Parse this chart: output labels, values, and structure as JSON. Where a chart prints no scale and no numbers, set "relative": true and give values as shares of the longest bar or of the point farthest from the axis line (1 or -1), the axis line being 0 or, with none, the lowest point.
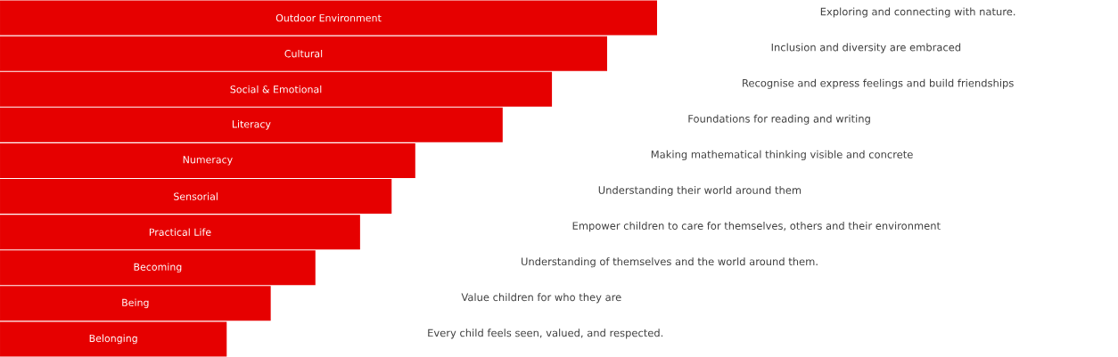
{
  "chart_data": {
    "type": "bar",
    "orientation": "horizontal",
    "relative": true,
    "color": "#e60000",
    "categories": [
      "Outdoor Environment",
      "Cultural",
      "Social & Emotional",
      "Literacy",
      "Numeracy",
      "Sensorial",
      "Practical Life",
      "Becoming",
      "Being",
      "Belonging"
    ],
    "values": [
      1,
      0.924,
      0.84,
      0.765,
      0.632,
      0.596,
      0.548,
      0.48,
      0.412,
      0.345
    ],
    "annotations": [
      "Exploring and connecting with nature.",
      "Inclusion and diversity are embraced",
      "Recognise and express feelings and build friendships",
      "Foundations for reading and writing",
      "Making mathematical thinking visible and concrete",
      "Understanding their world around them",
      "Empower children to care for themselves, others and their environment",
      "Understanding of themselves and the world around them.",
      "Value children for who they are",
      "Every child feels seen, valued, and respected."
    ]
  }
}
